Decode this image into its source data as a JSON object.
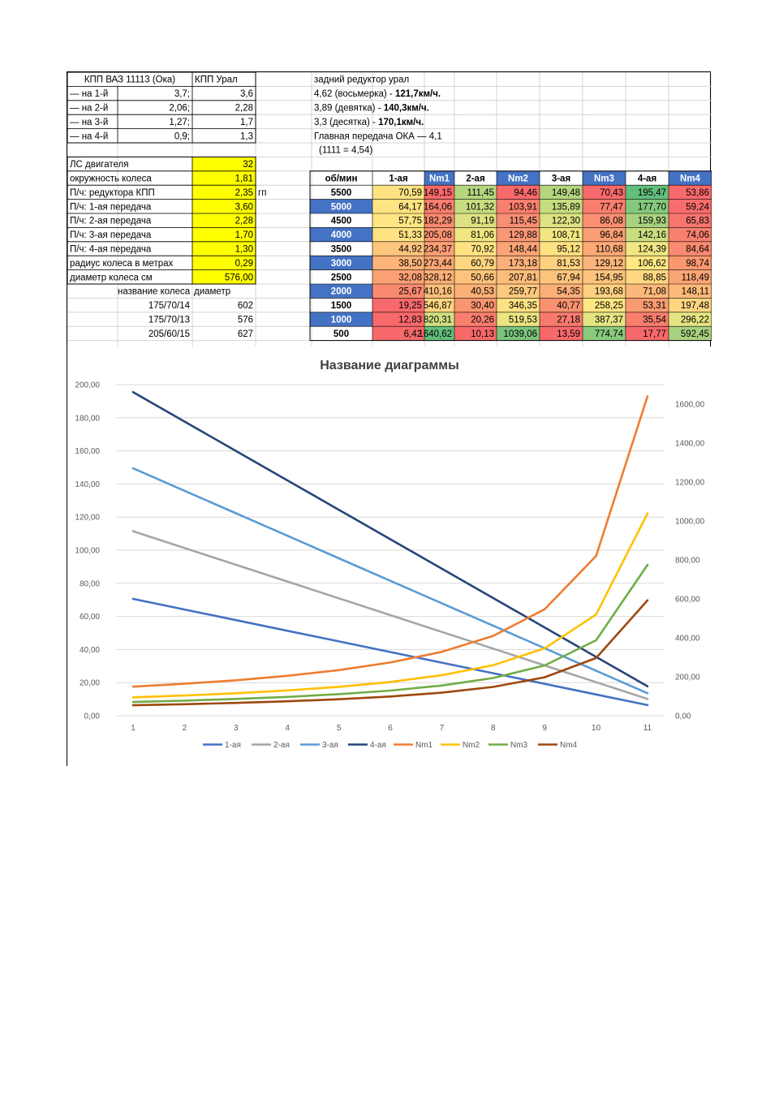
{
  "left_table": {
    "header": [
      "КПП ВАЗ 11113 (Ока)",
      "КПП Урал"
    ],
    "gear_rows": [
      {
        "label": "— на 1-й",
        "oka": "3,7;",
        "ural": "3,6"
      },
      {
        "label": "— на 2-й",
        "oka": "2,06;",
        "ural": "2,28"
      },
      {
        "label": "— на 3-й",
        "oka": "1,27;",
        "ural": "1,7"
      },
      {
        "label": "— на 4-й",
        "oka": "0,9;",
        "ural": "1,3"
      }
    ],
    "param_rows": [
      {
        "label": "ЛС двигателя",
        "value": "32"
      },
      {
        "label": "окружность колеса",
        "value": "1,81"
      },
      {
        "label": "П/ч: редуктора КПП",
        "value": "2,35",
        "note": "гп"
      },
      {
        "label": "П/ч: 1-ая передача",
        "value": "3,60"
      },
      {
        "label": "П/ч: 2-ая передача",
        "value": "2,28"
      },
      {
        "label": "П/ч: 3-ая передача",
        "value": "1,70"
      },
      {
        "label": "П/ч: 4-ая передача",
        "value": "1,30"
      },
      {
        "label": "радиус колеса в метрах",
        "value": "0,29"
      },
      {
        "label": "диаметр колеса см",
        "value": "576,00"
      }
    ],
    "wheel_header": [
      "название колеса",
      "диаметр"
    ],
    "wheels": [
      {
        "name": "175/70/14",
        "diameter": "602"
      },
      {
        "name": "175/70/13",
        "diameter": "576"
      },
      {
        "name": "205/60/15",
        "diameter": "627"
      }
    ]
  },
  "notes": [
    {
      "text": "задний редуктор урал",
      "bold": ""
    },
    {
      "text": "4,62 (восьмерка) - ",
      "bold": "121,7км/ч."
    },
    {
      "text": "3,89 (девятка) - ",
      "bold": "140,3км/ч."
    },
    {
      "text": "3,3 (десятка) - ",
      "bold": "170,1км/ч."
    },
    {
      "text": "Главная передача ОКА — 4,1",
      "bold": ""
    },
    {
      "text": "(1111 = 4,54)",
      "bold": ""
    }
  ],
  "rpm_table": {
    "columns": [
      "об/мин",
      "1-ая",
      "Nm1",
      "2-ая",
      "Nm2",
      "3-ая",
      "Nm3",
      "4-ая",
      "Nm4"
    ],
    "rows": [
      {
        "rpm": "5500",
        "v": [
          "70,59",
          "149,15",
          "111,45",
          "94,46",
          "149,48",
          "70,43",
          "195,47",
          "53,86"
        ]
      },
      {
        "rpm": "5000",
        "v": [
          "64,17",
          "164,06",
          "101,32",
          "103,91",
          "135,89",
          "77,47",
          "177,70",
          "59,24"
        ]
      },
      {
        "rpm": "4500",
        "v": [
          "57,75",
          "182,29",
          "91,19",
          "115,45",
          "122,30",
          "86,08",
          "159,93",
          "65,83"
        ]
      },
      {
        "rpm": "4000",
        "v": [
          "51,33",
          "205,08",
          "81,06",
          "129,88",
          "108,71",
          "96,84",
          "142,16",
          "74,06"
        ]
      },
      {
        "rpm": "3500",
        "v": [
          "44,92",
          "234,37",
          "70,92",
          "148,44",
          "95,12",
          "110,68",
          "124,39",
          "84,64"
        ]
      },
      {
        "rpm": "3000",
        "v": [
          "38,50",
          "273,44",
          "60,79",
          "173,18",
          "81,53",
          "129,12",
          "106,62",
          "98,74"
        ]
      },
      {
        "rpm": "2500",
        "v": [
          "32,08",
          "328,12",
          "50,66",
          "207,81",
          "67,94",
          "154,95",
          "88,85",
          "118,49"
        ]
      },
      {
        "rpm": "2000",
        "v": [
          "25,67",
          "410,16",
          "40,53",
          "259,77",
          "54,35",
          "193,68",
          "71,08",
          "148,11"
        ]
      },
      {
        "rpm": "1500",
        "v": [
          "19,25",
          "546,87",
          "30,40",
          "346,35",
          "40,77",
          "258,25",
          "53,31",
          "197,48"
        ]
      },
      {
        "rpm": "1000",
        "v": [
          "12,83",
          "820,31",
          "20,26",
          "519,53",
          "27,18",
          "387,37",
          "35,54",
          "296,22"
        ]
      },
      {
        "rpm": "500",
        "v": [
          "6,42",
          "1640,62",
          "10,13",
          "1039,06",
          "13,59",
          "774,74",
          "17,77",
          "592,45"
        ]
      }
    ],
    "cell_colors": [
      [
        "#fde281",
        "#f8696b",
        "#b4d67f",
        "#f8696b",
        "#b4d67f",
        "#f8696b",
        "#63be7b",
        "#f8696b"
      ],
      [
        "#fee482",
        "#f87e6e",
        "#c8dc80",
        "#f97f6f",
        "#c6dc80",
        "#f97e6e",
        "#84c87d",
        "#f86d6c"
      ],
      [
        "#ffe683",
        "#f88a70",
        "#dce181",
        "#f88e72",
        "#dde282",
        "#fa8f72",
        "#a8d27f",
        "#f9756d"
      ],
      [
        "#fee283",
        "#fa9473",
        "#f0e683",
        "#fa9774",
        "#f1e683",
        "#fa9e75",
        "#cbdd81",
        "#f97f6f"
      ],
      [
        "#fdc57d",
        "#fa9f75",
        "#ffe383",
        "#fba577",
        "#ffe182",
        "#fca977",
        "#f0e683",
        "#f88b71"
      ],
      [
        "#fcb479",
        "#faa675",
        "#fed580",
        "#fbb07a",
        "#fdd17f",
        "#fbb379",
        "#ffe883",
        "#f9986f"
      ],
      [
        "#fba175",
        "#fbb078",
        "#fdc37c",
        "#fbbd7b",
        "#fcc37c",
        "#fdc37d",
        "#fed881",
        "#faa574"
      ],
      [
        "#f98a70",
        "#fdc07d",
        "#fbb078",
        "#fdc97e",
        "#fbae78",
        "#fdd17f",
        "#fcb77a",
        "#fdba7a"
      ],
      [
        "#f8696b",
        "#fed580",
        "#f9956f",
        "#fee182",
        "#f99270",
        "#fee683",
        "#f99b72",
        "#fed680"
      ],
      [
        "#f8696b",
        "#d1df82",
        "#f87e6e",
        "#e9e583",
        "#f87a6d",
        "#e5e483",
        "#f87e6e",
        "#e4e483"
      ],
      [
        "#f8696b",
        "#63be7b",
        "#f8696b",
        "#7bc47c",
        "#f8696b",
        "#8aca7e",
        "#f8696b",
        "#a8d27f"
      ]
    ],
    "header_color": "#4472c4",
    "rpm_highlight_color": "#4472c4"
  },
  "chart_data": {
    "type": "line",
    "title": "Название диаграммы",
    "x": [
      1,
      2,
      3,
      4,
      5,
      6,
      7,
      8,
      9,
      10,
      11
    ],
    "xlabel": "",
    "ylabel": "",
    "ylim": [
      0,
      200
    ],
    "y2lim": [
      0,
      1600
    ],
    "yticks": [
      "0,00",
      "20,00",
      "40,00",
      "60,00",
      "80,00",
      "100,00",
      "120,00",
      "140,00",
      "160,00",
      "180,00",
      "200,00"
    ],
    "y2ticks": [
      "0,00",
      "200,00",
      "400,00",
      "600,00",
      "800,00",
      "1000,00",
      "1200,00",
      "1400,00",
      "1600,00"
    ],
    "grid": true,
    "legend": "bottom",
    "series": [
      {
        "name": "1-ая",
        "axis": "left",
        "color": "#4472c4",
        "values": [
          70.59,
          64.17,
          57.75,
          51.33,
          44.92,
          38.5,
          32.08,
          25.67,
          19.25,
          12.83,
          6.42
        ]
      },
      {
        "name": "2-ая",
        "axis": "left",
        "color": "#a5a5a5",
        "values": [
          111.45,
          101.32,
          91.19,
          81.06,
          70.92,
          60.79,
          50.66,
          40.53,
          30.4,
          20.26,
          10.13
        ]
      },
      {
        "name": "3-ая",
        "axis": "left",
        "color": "#5b9bd5",
        "values": [
          149.48,
          135.89,
          122.3,
          108.71,
          95.12,
          81.53,
          67.94,
          54.35,
          40.77,
          27.18,
          13.59
        ]
      },
      {
        "name": "4-ая",
        "axis": "left",
        "color": "#264478",
        "values": [
          195.47,
          177.7,
          159.93,
          142.16,
          124.39,
          106.62,
          88.85,
          71.08,
          53.31,
          35.54,
          17.77
        ]
      },
      {
        "name": "Nm1",
        "axis": "right",
        "color": "#ed7d31",
        "values": [
          149.15,
          164.06,
          182.29,
          205.08,
          234.37,
          273.44,
          328.12,
          410.16,
          546.87,
          820.31,
          1640.62
        ]
      },
      {
        "name": "Nm2",
        "axis": "right",
        "color": "#ffc000",
        "values": [
          94.46,
          103.91,
          115.45,
          129.88,
          148.44,
          173.18,
          207.81,
          259.77,
          346.35,
          519.53,
          1039.06
        ]
      },
      {
        "name": "Nm3",
        "axis": "right",
        "color": "#70ad47",
        "values": [
          70.43,
          77.47,
          86.08,
          96.84,
          110.68,
          129.12,
          154.95,
          193.68,
          258.25,
          387.37,
          774.74
        ]
      },
      {
        "name": "Nm4",
        "axis": "right",
        "color": "#9e480e",
        "values": [
          53.86,
          59.24,
          65.83,
          74.06,
          84.64,
          98.74,
          118.49,
          148.11,
          197.48,
          296.22,
          592.45
        ]
      }
    ]
  },
  "colors": {
    "yellow_cell": "#ffff00",
    "grid_line": "#d9d9d9",
    "axis_text": "#595959"
  }
}
